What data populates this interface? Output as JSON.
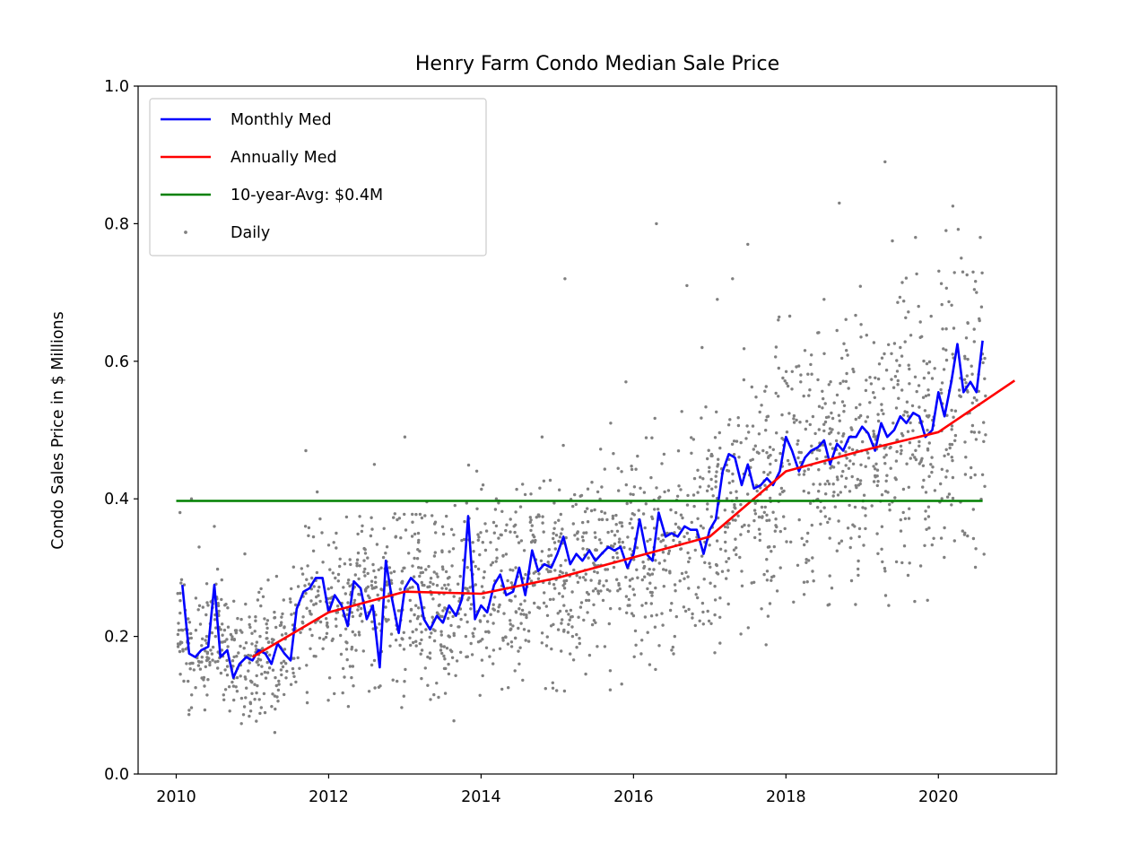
{
  "chart_data": {
    "type": "line",
    "title": "Henry Farm Condo Median Sale Price",
    "xlabel": "",
    "ylabel": "Condo Sales Price in $ Millions",
    "xlim": [
      2009.5,
      2021.55
    ],
    "ylim": [
      0.0,
      1.0
    ],
    "xticks": [
      {
        "value": 2010,
        "label": "2010"
      },
      {
        "value": 2012,
        "label": "2012"
      },
      {
        "value": 2014,
        "label": "2014"
      },
      {
        "value": 2016,
        "label": "2016"
      },
      {
        "value": 2018,
        "label": "2018"
      },
      {
        "value": 2020,
        "label": "2020"
      }
    ],
    "yticks": [
      {
        "value": 0.0,
        "label": "0.0"
      },
      {
        "value": 0.2,
        "label": "0.2"
      },
      {
        "value": 0.4,
        "label": "0.4"
      },
      {
        "value": 0.6,
        "label": "0.6"
      },
      {
        "value": 0.8,
        "label": "0.8"
      },
      {
        "value": 1.0,
        "label": "1.0"
      }
    ],
    "grid": false,
    "legend_position": "top-left",
    "series": [
      {
        "name": "Monthly Med",
        "kind": "line",
        "color": "#0000ff",
        "x": [
          2010.08,
          2010.17,
          2010.25,
          2010.33,
          2010.42,
          2010.5,
          2010.58,
          2010.67,
          2010.75,
          2010.83,
          2010.92,
          2011.0,
          2011.08,
          2011.17,
          2011.25,
          2011.33,
          2011.42,
          2011.5,
          2011.58,
          2011.67,
          2011.75,
          2011.83,
          2011.92,
          2012.0,
          2012.08,
          2012.17,
          2012.25,
          2012.33,
          2012.42,
          2012.5,
          2012.58,
          2012.67,
          2012.75,
          2012.83,
          2012.92,
          2013.0,
          2013.08,
          2013.17,
          2013.25,
          2013.33,
          2013.42,
          2013.5,
          2013.58,
          2013.67,
          2013.75,
          2013.83,
          2013.92,
          2014.0,
          2014.08,
          2014.17,
          2014.25,
          2014.33,
          2014.42,
          2014.5,
          2014.58,
          2014.67,
          2014.75,
          2014.83,
          2014.92,
          2015.0,
          2015.08,
          2015.17,
          2015.25,
          2015.33,
          2015.42,
          2015.5,
          2015.58,
          2015.67,
          2015.75,
          2015.83,
          2015.92,
          2016.0,
          2016.08,
          2016.17,
          2016.25,
          2016.33,
          2016.42,
          2016.5,
          2016.58,
          2016.67,
          2016.75,
          2016.83,
          2016.92,
          2017.0,
          2017.08,
          2017.17,
          2017.25,
          2017.33,
          2017.42,
          2017.5,
          2017.58,
          2017.67,
          2017.75,
          2017.83,
          2017.92,
          2018.0,
          2018.08,
          2018.17,
          2018.25,
          2018.33,
          2018.42,
          2018.5,
          2018.58,
          2018.67,
          2018.75,
          2018.83,
          2018.92,
          2019.0,
          2019.08,
          2019.17,
          2019.25,
          2019.33,
          2019.42,
          2019.5,
          2019.58,
          2019.67,
          2019.75,
          2019.83,
          2019.92,
          2020.0,
          2020.08,
          2020.17,
          2020.25,
          2020.33,
          2020.42,
          2020.5,
          2020.58
        ],
        "y": [
          0.275,
          0.175,
          0.17,
          0.18,
          0.185,
          0.275,
          0.17,
          0.18,
          0.14,
          0.16,
          0.17,
          0.165,
          0.18,
          0.175,
          0.16,
          0.19,
          0.175,
          0.165,
          0.24,
          0.265,
          0.27,
          0.285,
          0.285,
          0.235,
          0.26,
          0.245,
          0.215,
          0.28,
          0.27,
          0.225,
          0.245,
          0.155,
          0.31,
          0.255,
          0.205,
          0.27,
          0.285,
          0.275,
          0.225,
          0.21,
          0.23,
          0.22,
          0.245,
          0.23,
          0.255,
          0.375,
          0.225,
          0.245,
          0.235,
          0.275,
          0.29,
          0.26,
          0.265,
          0.3,
          0.26,
          0.325,
          0.295,
          0.305,
          0.3,
          0.32,
          0.345,
          0.305,
          0.32,
          0.31,
          0.325,
          0.31,
          0.32,
          0.33,
          0.325,
          0.33,
          0.3,
          0.32,
          0.37,
          0.32,
          0.31,
          0.38,
          0.345,
          0.35,
          0.345,
          0.36,
          0.355,
          0.355,
          0.32,
          0.355,
          0.37,
          0.44,
          0.465,
          0.46,
          0.42,
          0.45,
          0.415,
          0.42,
          0.43,
          0.42,
          0.44,
          0.49,
          0.47,
          0.44,
          0.46,
          0.47,
          0.475,
          0.485,
          0.45,
          0.48,
          0.47,
          0.49,
          0.49,
          0.505,
          0.495,
          0.47,
          0.51,
          0.49,
          0.5,
          0.52,
          0.51,
          0.525,
          0.52,
          0.49,
          0.5,
          0.555,
          0.52,
          0.57,
          0.625,
          0.555,
          0.57,
          0.555,
          0.63
        ]
      },
      {
        "name": "Annually Med",
        "kind": "line",
        "color": "#ff0000",
        "x": [
          2011.0,
          2012.0,
          2013.0,
          2014.0,
          2015.0,
          2016.0,
          2017.0,
          2018.0,
          2019.0,
          2020.0,
          2021.0
        ],
        "y": [
          0.17,
          0.235,
          0.265,
          0.262,
          0.285,
          0.315,
          0.345,
          0.44,
          0.47,
          0.497,
          0.572
        ]
      },
      {
        "name": "10-year-Avg: $0.4M",
        "kind": "hline",
        "color": "#008000",
        "x": [
          2010.0,
          2020.58
        ],
        "y": [
          0.397,
          0.397
        ]
      },
      {
        "name": "Daily",
        "kind": "scatter",
        "color": "#808080",
        "x": [
          2010.05,
          2010.1,
          2010.2,
          2010.3,
          2010.4,
          2010.5,
          2010.6,
          2010.8,
          2010.9,
          2011.1,
          2011.3,
          2011.5,
          2011.7,
          2011.85,
          2012.1,
          2012.3,
          2012.6,
          2012.8,
          2013.0,
          2013.3,
          2013.6,
          2013.9,
          2014.2,
          2014.5,
          2014.8,
          2015.1,
          2015.2,
          2015.5,
          2015.7,
          2015.9,
          2016.0,
          2016.3,
          2016.5,
          2016.7,
          2016.9,
          2017.1,
          2017.3,
          2017.5,
          2017.7,
          2017.9,
          2018.1,
          2018.3,
          2018.5,
          2018.7,
          2018.9,
          2019.1,
          2019.3,
          2019.5,
          2019.7,
          2019.9,
          2020.1,
          2020.3,
          2020.5,
          2020.55
        ],
        "y": [
          0.38,
          0.135,
          0.4,
          0.33,
          0.2,
          0.36,
          0.18,
          0.14,
          0.32,
          0.2,
          0.14,
          0.25,
          0.47,
          0.41,
          0.35,
          0.14,
          0.45,
          0.3,
          0.49,
          0.17,
          0.18,
          0.2,
          0.4,
          0.16,
          0.49,
          0.72,
          0.2,
          0.22,
          0.51,
          0.57,
          0.23,
          0.8,
          0.18,
          0.71,
          0.62,
          0.69,
          0.72,
          0.77,
          0.47,
          0.66,
          0.25,
          0.55,
          0.69,
          0.83,
          0.36,
          0.54,
          0.89,
          0.62,
          0.78,
          0.45,
          0.79,
          0.75,
          0.7,
          0.78
        ]
      }
    ]
  }
}
